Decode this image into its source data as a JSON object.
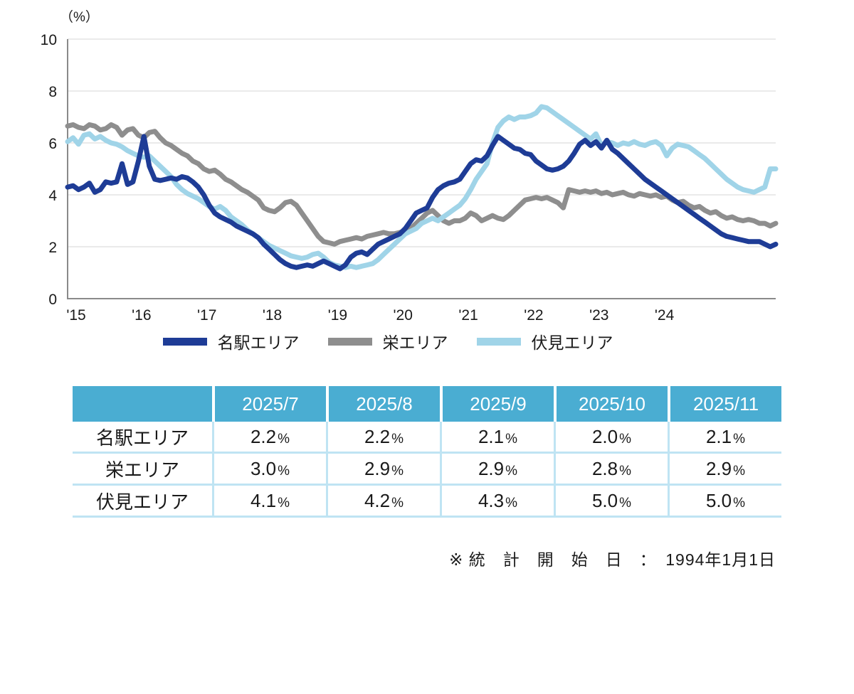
{
  "chart_data": {
    "type": "line",
    "title": "",
    "unit_label": "（%）",
    "xlabel": "",
    "ylabel": "",
    "ylim": [
      0,
      10
    ],
    "yticks": [
      0,
      2,
      4,
      6,
      8,
      10
    ],
    "grid": "horizontal light gray lines at each y tick",
    "legend_position": "bottom-center",
    "x_start": "2015-01",
    "x_end": "2025-11",
    "x_frequency": "monthly",
    "x_tick_labels": [
      "'15",
      "'16",
      "'17",
      "'18",
      "'19",
      "'20",
      "'21",
      "'22",
      "'23",
      "'24"
    ],
    "series": [
      {
        "key": "meieki",
        "name": "名駅エリア",
        "color": "#1e3c96",
        "values": [
          4.3,
          4.35,
          4.2,
          4.3,
          4.45,
          4.1,
          4.2,
          4.5,
          4.45,
          4.5,
          5.2,
          4.4,
          4.5,
          5.3,
          6.25,
          5.1,
          4.6,
          4.55,
          4.6,
          4.65,
          4.6,
          4.7,
          4.65,
          4.5,
          4.3,
          4.0,
          3.6,
          3.3,
          3.15,
          3.05,
          2.95,
          2.8,
          2.7,
          2.6,
          2.5,
          2.35,
          2.1,
          1.9,
          1.7,
          1.5,
          1.35,
          1.25,
          1.2,
          1.25,
          1.3,
          1.25,
          1.35,
          1.45,
          1.35,
          1.25,
          1.15,
          1.3,
          1.6,
          1.75,
          1.8,
          1.7,
          1.9,
          2.1,
          2.2,
          2.3,
          2.4,
          2.5,
          2.7,
          3.0,
          3.3,
          3.4,
          3.5,
          3.9,
          4.2,
          4.35,
          4.45,
          4.5,
          4.6,
          4.9,
          5.2,
          5.35,
          5.3,
          5.5,
          5.9,
          6.25,
          6.1,
          5.95,
          5.8,
          5.75,
          5.6,
          5.55,
          5.3,
          5.15,
          5.0,
          4.95,
          5.0,
          5.1,
          5.3,
          5.6,
          5.95,
          6.1,
          5.9,
          6.05,
          5.8,
          6.1,
          5.75,
          5.6,
          5.4,
          5.2,
          5.0,
          4.8,
          4.6,
          4.45,
          4.3,
          4.15,
          4.0,
          3.85,
          3.7,
          3.55,
          3.4,
          3.25,
          3.1,
          2.95,
          2.8,
          2.65,
          2.5,
          2.4,
          2.35,
          2.3,
          2.25,
          2.2,
          2.2,
          2.2,
          2.1,
          2.0,
          2.1
        ]
      },
      {
        "key": "sakae",
        "name": "栄エリア",
        "color": "#8e8e8e",
        "values": [
          6.65,
          6.7,
          6.6,
          6.55,
          6.7,
          6.65,
          6.5,
          6.55,
          6.7,
          6.6,
          6.3,
          6.5,
          6.55,
          6.3,
          6.2,
          6.4,
          6.45,
          6.2,
          6.0,
          5.9,
          5.75,
          5.6,
          5.5,
          5.3,
          5.2,
          5.0,
          4.9,
          4.95,
          4.8,
          4.6,
          4.5,
          4.35,
          4.2,
          4.1,
          3.95,
          3.8,
          3.5,
          3.4,
          3.35,
          3.5,
          3.7,
          3.75,
          3.6,
          3.3,
          3.0,
          2.7,
          2.4,
          2.2,
          2.15,
          2.1,
          2.2,
          2.25,
          2.3,
          2.35,
          2.3,
          2.4,
          2.45,
          2.5,
          2.55,
          2.5,
          2.5,
          2.55,
          2.6,
          2.7,
          2.9,
          3.1,
          3.3,
          3.4,
          3.2,
          3.0,
          2.9,
          3.0,
          3.0,
          3.1,
          3.3,
          3.2,
          3.0,
          3.1,
          3.2,
          3.1,
          3.05,
          3.2,
          3.4,
          3.6,
          3.8,
          3.85,
          3.9,
          3.85,
          3.9,
          3.8,
          3.7,
          3.5,
          4.2,
          4.15,
          4.1,
          4.15,
          4.1,
          4.15,
          4.05,
          4.1,
          4.0,
          4.05,
          4.1,
          4.0,
          3.95,
          4.05,
          4.0,
          3.95,
          4.0,
          3.9,
          3.95,
          3.8,
          3.7,
          3.75,
          3.6,
          3.5,
          3.55,
          3.4,
          3.3,
          3.35,
          3.2,
          3.1,
          3.15,
          3.05,
          3.0,
          3.05,
          3.0,
          2.9,
          2.9,
          2.8,
          2.9
        ]
      },
      {
        "key": "fushimi",
        "name": "伏見エリア",
        "color": "#a0d4e8",
        "values": [
          6.05,
          6.2,
          5.95,
          6.3,
          6.35,
          6.15,
          6.25,
          6.1,
          6.0,
          5.95,
          5.85,
          5.7,
          5.6,
          5.5,
          5.45,
          5.5,
          5.3,
          5.1,
          4.9,
          4.7,
          4.4,
          4.2,
          4.05,
          3.95,
          3.85,
          3.7,
          3.55,
          3.45,
          3.55,
          3.4,
          3.15,
          3.0,
          2.85,
          2.65,
          2.5,
          2.35,
          2.2,
          2.05,
          1.95,
          1.85,
          1.75,
          1.65,
          1.6,
          1.55,
          1.6,
          1.7,
          1.75,
          1.6,
          1.4,
          1.3,
          1.25,
          1.2,
          1.25,
          1.2,
          1.25,
          1.3,
          1.35,
          1.5,
          1.7,
          1.9,
          2.1,
          2.3,
          2.5,
          2.6,
          2.7,
          2.9,
          3.0,
          3.1,
          3.0,
          3.15,
          3.3,
          3.45,
          3.6,
          3.85,
          4.2,
          4.6,
          4.9,
          5.2,
          6.0,
          6.6,
          6.85,
          7.0,
          6.9,
          7.0,
          7.0,
          7.05,
          7.15,
          7.4,
          7.35,
          7.2,
          7.05,
          6.9,
          6.75,
          6.6,
          6.45,
          6.3,
          6.15,
          6.35,
          5.9,
          6.05,
          6.0,
          5.9,
          6.0,
          5.95,
          6.05,
          5.95,
          5.9,
          6.0,
          6.05,
          5.9,
          5.5,
          5.8,
          5.95,
          5.9,
          5.85,
          5.7,
          5.55,
          5.4,
          5.2,
          5.0,
          4.8,
          4.6,
          4.45,
          4.3,
          4.2,
          4.15,
          4.1,
          4.2,
          4.3,
          5.0,
          5.0
        ]
      }
    ]
  },
  "table": {
    "header_bg": "#4aadd2",
    "divider_color": "#bfe4f3",
    "columns": [
      "2025/7",
      "2025/8",
      "2025/9",
      "2025/10",
      "2025/11"
    ],
    "unit": "%",
    "rows": [
      {
        "label": "名駅エリア",
        "values": [
          "2.2",
          "2.2",
          "2.1",
          "2.0",
          "2.1"
        ]
      },
      {
        "label": "栄エリア",
        "values": [
          "3.0",
          "2.9",
          "2.9",
          "2.8",
          "2.9"
        ]
      },
      {
        "label": "伏見エリア",
        "values": [
          "4.1",
          "4.2",
          "4.3",
          "5.0",
          "5.0"
        ]
      }
    ]
  },
  "footnote": "※ 統　計　開　始　日　：　1994年1月1日"
}
